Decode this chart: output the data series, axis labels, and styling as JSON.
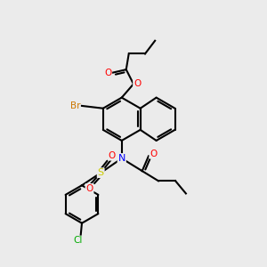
{
  "bg_color": "#ebebeb",
  "bond_color": "#000000",
  "atom_colors": {
    "O": "#ff0000",
    "N": "#0000ff",
    "S": "#cccc00",
    "Cl": "#00aa00",
    "Br": "#cc7700",
    "C": "#000000"
  }
}
